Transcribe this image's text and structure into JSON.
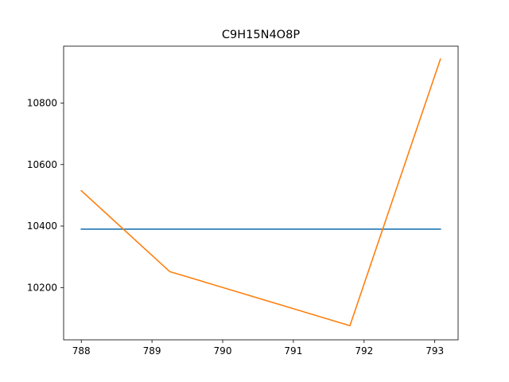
{
  "chart_data": {
    "type": "line",
    "title": "C9H15N4O8P",
    "xlabel": "",
    "ylabel": "",
    "xlim": [
      787.75,
      793.33
    ],
    "ylim": [
      10030,
      10985
    ],
    "x_ticks": [
      788,
      789,
      790,
      791,
      792,
      793
    ],
    "y_ticks": [
      10200,
      10400,
      10600,
      10800
    ],
    "grid": false,
    "legend": "none",
    "series": [
      {
        "color": "#1f77b4",
        "points": [
          [
            788.0,
            10390
          ],
          [
            793.08,
            10390
          ]
        ]
      },
      {
        "color": "#ff7f0e",
        "points": [
          [
            788.0,
            10515
          ],
          [
            789.25,
            10252
          ],
          [
            791.8,
            10076
          ],
          [
            793.08,
            10943
          ]
        ]
      }
    ]
  }
}
